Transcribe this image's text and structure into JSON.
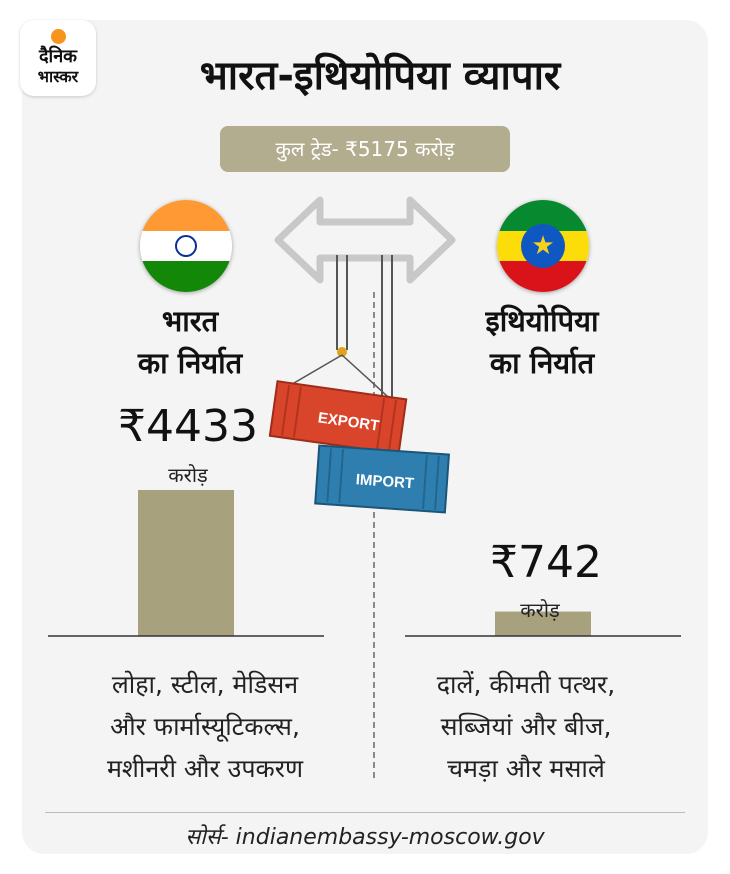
{
  "brand": {
    "line1": "दैनिक",
    "line2": "भास्कर"
  },
  "title": "भारत-इथियोपिया व्यापार",
  "total_trade": "कुल ट्रेड- ₹5175 करोड़",
  "india": {
    "heading_line1": "भारत",
    "heading_line2": "का निर्यात",
    "value_label": "₹4433",
    "unit": "करोड़",
    "items_line1": "लोहा, स्टील, मेडिसन",
    "items_line2": "और फार्मास्यूटिकल्स,",
    "items_line3": "मशीनरी और उपकरण"
  },
  "ethiopia": {
    "heading_line1": "इथियोपिया",
    "heading_line2": "का निर्यात",
    "value_label": "₹742",
    "unit": "करोड़",
    "items_line1": "दालें, कीमती पत्थर,",
    "items_line2": "सब्जियां और बीज,",
    "items_line3": "चमड़ा और मसाले"
  },
  "containers": {
    "export_label": "EXPORT",
    "import_label": "IMPORT"
  },
  "source": "सोर्स- indianembassy-moscow.gov",
  "colors": {
    "bar": "#a7a17e",
    "pill": "#b3ad8f",
    "export_container": "#d9452b",
    "import_container": "#2e7fb0",
    "logo_dot": "#f7941d"
  },
  "chart_data": {
    "type": "bar",
    "categories": [
      "भारत का निर्यात",
      "इथियोपिया का निर्यात"
    ],
    "values": [
      4433,
      742
    ],
    "unit": "करोड़"
  }
}
